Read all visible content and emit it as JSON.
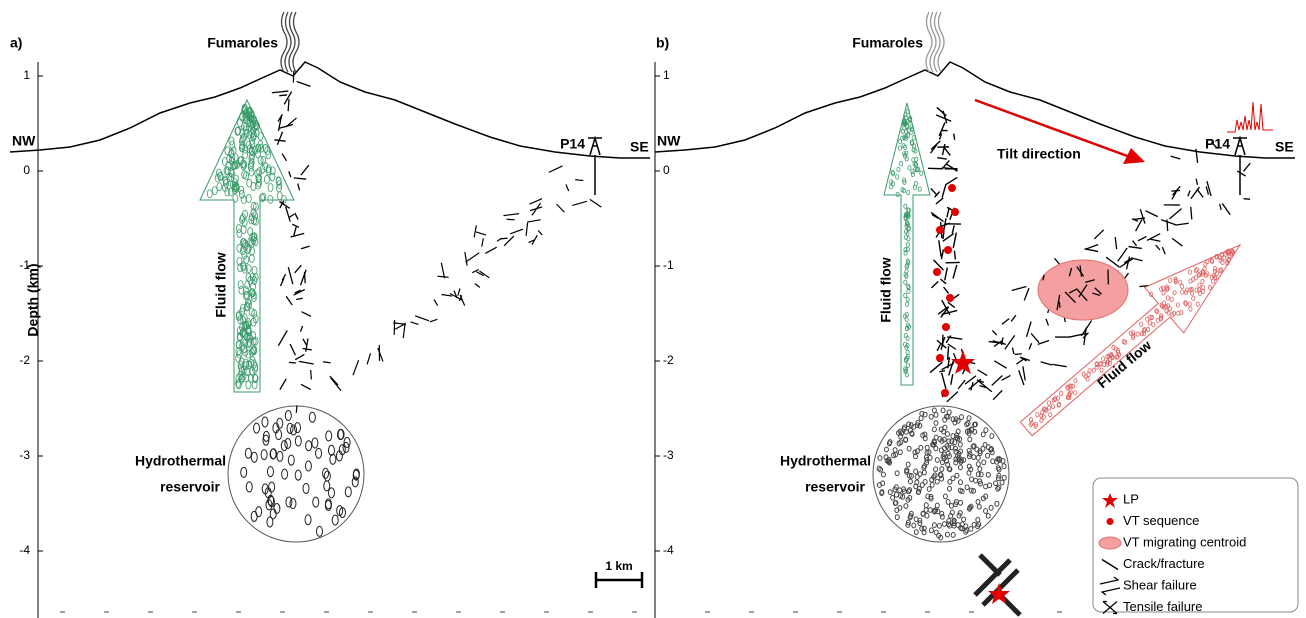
{
  "panels": [
    {
      "label": "a)",
      "fumaroles": "Fumaroles",
      "nw": "NW",
      "se": "SE",
      "station": "P14",
      "fluid_flow": "Fluid flow",
      "reservoir": [
        "Hydrothermal",
        "reservoir"
      ],
      "depth_ticks": [
        "1",
        "0",
        "-1",
        "-2",
        "-3",
        "-4"
      ]
    },
    {
      "label": "b)",
      "fumaroles": "Fumaroles",
      "nw": "NW",
      "se": "SE",
      "station": "P14",
      "fluid_flow": "Fluid flow",
      "reservoir": [
        "Hydrothermal",
        "reservoir"
      ],
      "depth_ticks": [
        "1",
        "0",
        "-1",
        "-2",
        "-3",
        "-4"
      ],
      "tilt": "Tilt direction",
      "fluid_flow_2": "Fluid flow"
    }
  ],
  "axis_title": "Depth (km)",
  "scale_bar": "1 km",
  "legend": [
    "LP",
    "VT sequence",
    "VT migrating centroid",
    "Crack/fracture",
    "Shear failure",
    "Tensile failure"
  ]
}
